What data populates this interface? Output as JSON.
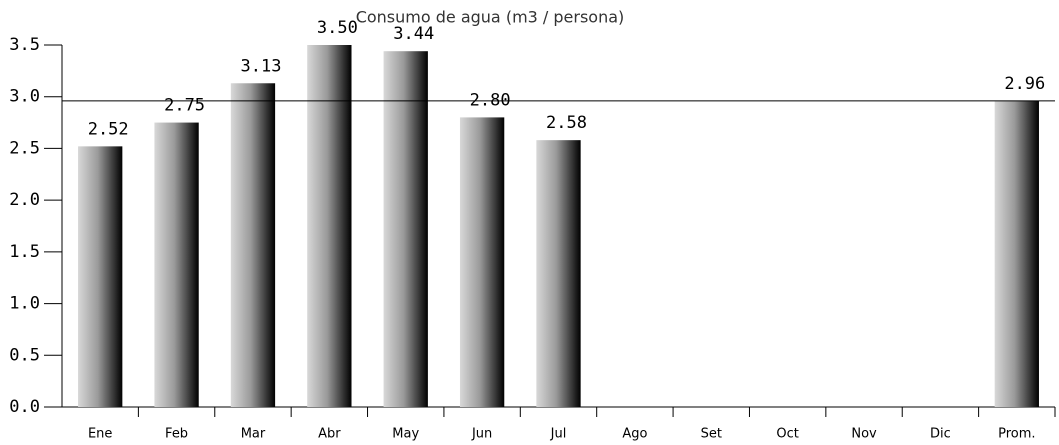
{
  "chart_data": {
    "type": "bar",
    "title": "Consumo de agua (m3 / persona)",
    "categories": [
      "Ene",
      "Feb",
      "Mar",
      "Abr",
      "May",
      "Jun",
      "Jul",
      "Ago",
      "Set",
      "Oct",
      "Nov",
      "Dic",
      "Prom."
    ],
    "values": [
      2.52,
      2.75,
      3.13,
      3.5,
      3.44,
      2.8,
      2.58,
      null,
      null,
      null,
      null,
      null,
      2.96
    ],
    "value_labels": [
      "2.52",
      "2.75",
      "3.13",
      "3.50",
      "3.44",
      "2.80",
      "2.58",
      null,
      null,
      null,
      null,
      null,
      "2.96"
    ],
    "color": "#000000",
    "ylim": [
      0,
      3.5
    ],
    "yticks": [
      {
        "value": 0,
        "label": "0.0"
      },
      {
        "value": 0.5,
        "label": "0.5"
      },
      {
        "value": 1,
        "label": "1.0"
      },
      {
        "value": 1.5,
        "label": "1.5"
      },
      {
        "value": 2,
        "label": "2.0"
      },
      {
        "value": 2.5,
        "label": "2.5"
      },
      {
        "value": 3,
        "label": "3.0"
      },
      {
        "value": 3.5,
        "label": "3.5"
      }
    ]
  }
}
